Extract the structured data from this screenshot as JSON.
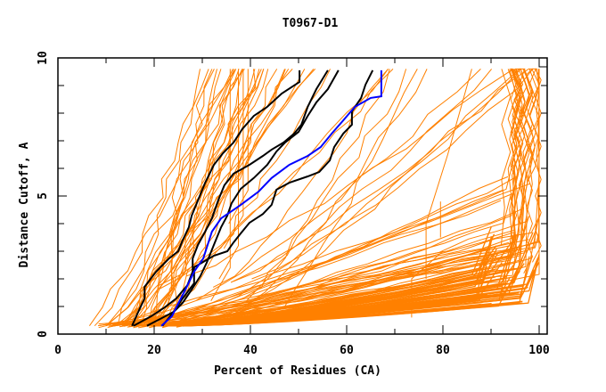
{
  "chart_data": {
    "type": "line",
    "title": "T0967-D1",
    "xlabel": "Percent of Residues (CA)",
    "ylabel": "Distance Cutoff, A",
    "xlim": [
      0,
      100
    ],
    "ylim": [
      0,
      10
    ],
    "x_ticks": [
      0,
      20,
      40,
      60,
      80,
      100
    ],
    "y_ticks": [
      0,
      5,
      10
    ],
    "x_minor_step": 10,
    "y_minor_step": 1.4,
    "grid": false,
    "legend": "none",
    "colors": {
      "frame": "#000000",
      "background_models": "#ff8000",
      "highlight_models": "#000000",
      "selected_model": "#0000ff"
    },
    "series": [
      {
        "name": "selected-model",
        "color": "#0000ff",
        "points": [
          [
            21.5,
            0.3
          ],
          [
            23.7,
            0.65
          ],
          [
            24.6,
            0.97
          ],
          [
            26.5,
            1.61
          ],
          [
            28.3,
            2.26
          ],
          [
            30.2,
            2.74
          ],
          [
            32,
            3.71
          ],
          [
            33.9,
            4.19
          ],
          [
            38,
            4.68
          ],
          [
            41.7,
            5.16
          ],
          [
            44.4,
            5.65
          ],
          [
            48.1,
            6.13
          ],
          [
            51.9,
            6.45
          ],
          [
            54.6,
            6.77
          ],
          [
            56.9,
            7.26
          ],
          [
            59.3,
            7.74
          ],
          [
            61.7,
            8.23
          ],
          [
            65,
            8.55
          ],
          [
            67.2,
            8.61
          ],
          [
            67.2,
            9.55
          ]
        ]
      },
      {
        "name": "highlight-model-1",
        "color": "#000000",
        "points": [
          [
            15.4,
            0.3
          ],
          [
            16.7,
            0.81
          ],
          [
            18,
            1.29
          ],
          [
            18,
            1.71
          ],
          [
            20.4,
            2.26
          ],
          [
            23.1,
            2.74
          ],
          [
            25,
            3.0
          ],
          [
            25.9,
            3.39
          ],
          [
            27.2,
            3.87
          ],
          [
            27.8,
            4.29
          ],
          [
            29.1,
            4.84
          ],
          [
            30.6,
            5.48
          ],
          [
            32.4,
            6.13
          ],
          [
            34.3,
            6.55
          ],
          [
            36.5,
            6.94
          ],
          [
            38.3,
            7.42
          ],
          [
            40.7,
            7.9
          ],
          [
            43.5,
            8.23
          ],
          [
            46.5,
            8.71
          ],
          [
            50.2,
            9.13
          ],
          [
            50.2,
            9.55
          ]
        ]
      },
      {
        "name": "highlight-model-2",
        "color": "#000000",
        "points": [
          [
            15.7,
            0.3
          ],
          [
            19.4,
            0.65
          ],
          [
            22.2,
            0.97
          ],
          [
            24.6,
            1.29
          ],
          [
            26.9,
            1.77
          ],
          [
            28,
            2.26
          ],
          [
            28,
            2.74
          ],
          [
            29.1,
            3.23
          ],
          [
            30.6,
            3.71
          ],
          [
            32,
            4.19
          ],
          [
            33.3,
            4.84
          ],
          [
            34.6,
            5.39
          ],
          [
            36.5,
            5.81
          ],
          [
            39.8,
            6.13
          ],
          [
            42.6,
            6.45
          ],
          [
            44.4,
            6.68
          ],
          [
            46.9,
            6.94
          ],
          [
            49.1,
            7.26
          ],
          [
            50.6,
            7.58
          ],
          [
            51.9,
            8.23
          ],
          [
            53.7,
            8.87
          ],
          [
            56.1,
            9.55
          ]
        ]
      },
      {
        "name": "highlight-model-3",
        "color": "#000000",
        "points": [
          [
            18.5,
            0.3
          ],
          [
            21.3,
            0.55
          ],
          [
            24.1,
            0.81
          ],
          [
            25.9,
            1.13
          ],
          [
            27.8,
            1.61
          ],
          [
            29.6,
            2.1
          ],
          [
            30.9,
            2.58
          ],
          [
            32.4,
            3.23
          ],
          [
            33.9,
            3.87
          ],
          [
            35.2,
            4.29
          ],
          [
            36.1,
            4.74
          ],
          [
            38,
            5.26
          ],
          [
            40.7,
            5.65
          ],
          [
            43.5,
            6.13
          ],
          [
            45.4,
            6.61
          ],
          [
            47.2,
            6.94
          ],
          [
            50,
            7.32
          ],
          [
            51.9,
            7.9
          ],
          [
            53.7,
            8.39
          ],
          [
            56.1,
            8.87
          ],
          [
            58.3,
            9.55
          ]
        ]
      },
      {
        "name": "highlight-model-4",
        "color": "#000000",
        "points": [
          [
            21.7,
            0.3
          ],
          [
            24.1,
            0.81
          ],
          [
            25.9,
            1.29
          ],
          [
            28.3,
            1.84
          ],
          [
            28.3,
            2.42
          ],
          [
            32.4,
            2.84
          ],
          [
            35.2,
            3.0
          ],
          [
            36.5,
            3.32
          ],
          [
            38,
            3.65
          ],
          [
            39.8,
            4.03
          ],
          [
            42.6,
            4.35
          ],
          [
            44.4,
            4.68
          ],
          [
            45.4,
            5.23
          ],
          [
            48.1,
            5.48
          ],
          [
            51.9,
            5.71
          ],
          [
            54.3,
            5.87
          ],
          [
            56.5,
            6.29
          ],
          [
            57.4,
            6.77
          ],
          [
            59.3,
            7.26
          ],
          [
            61.1,
            7.58
          ],
          [
            61.1,
            8.06
          ],
          [
            63,
            8.55
          ],
          [
            63.9,
            9.03
          ],
          [
            65.4,
            9.55
          ]
        ]
      }
    ],
    "background_series_count": 150,
    "background_series_description": "Orange model curves; groups: steep curves (x 6-50% near top), shallow bundles reaching 95-100% at 1.5-5 A, dense bundle reaching ~95% at ~2 A, vertical-ending curves at 95-100%"
  }
}
